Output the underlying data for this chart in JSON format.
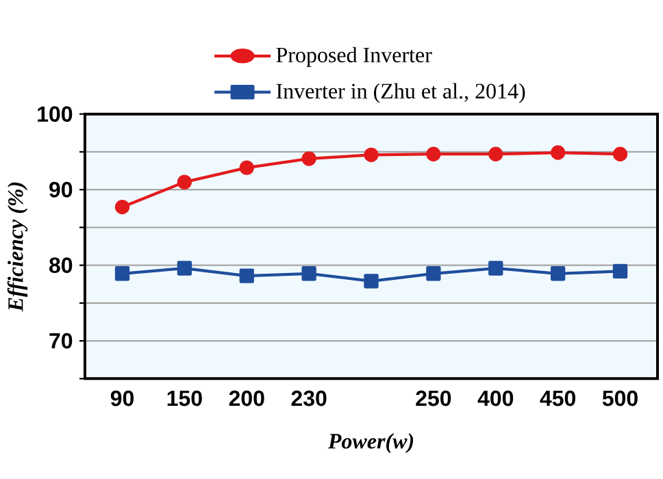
{
  "chart_data": {
    "type": "line",
    "xlabel": "Power(w)",
    "ylabel": "Efficiency (%)",
    "categories": [
      "90",
      "150",
      "200",
      "230",
      null,
      "250",
      "400",
      "450",
      "500"
    ],
    "ylim": [
      65,
      100
    ],
    "yticks": [
      {
        "value": 65,
        "label": null
      },
      70,
      {
        "value": 75,
        "label": null
      },
      80,
      {
        "value": 85,
        "label": null
      },
      90,
      {
        "value": 95,
        "label": null
      },
      100
    ],
    "grid": "y",
    "legend": "top",
    "series": [
      {
        "name": "Proposed Inverter",
        "color": "#e31a1c",
        "marker": "circle",
        "values": [
          87.7,
          91.0,
          92.9,
          94.1,
          94.6,
          94.7,
          94.7,
          94.9,
          94.7
        ]
      },
      {
        "name": "Inverter in (Zhu et al., 2014)",
        "color": "#1f4e9c",
        "marker": "square",
        "values": [
          78.9,
          79.6,
          78.6,
          78.9,
          77.9,
          78.9,
          79.6,
          78.9,
          79.2
        ]
      }
    ]
  }
}
